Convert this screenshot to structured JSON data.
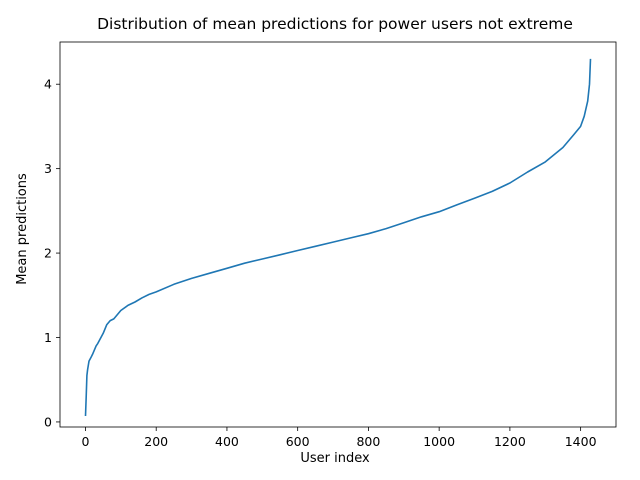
{
  "chart_data": {
    "type": "line",
    "title": "Distribution of mean predictions for power users not extreme",
    "xlabel": "User index",
    "ylabel": "Mean predictions",
    "xlim": [
      -72,
      1500
    ],
    "ylim": [
      -0.06,
      4.5
    ],
    "xticks": [
      0,
      200,
      400,
      600,
      800,
      1000,
      1200,
      1400
    ],
    "yticks": [
      0,
      1,
      2,
      3,
      4
    ],
    "grid": false,
    "legend": "none",
    "color": "#1f77b4",
    "series": [
      {
        "x": [
          0,
          2,
          4,
          6,
          10,
          15,
          20,
          25,
          30,
          35,
          40,
          50,
          60,
          70,
          80,
          100,
          120,
          140,
          160,
          180,
          200,
          250,
          300,
          350,
          400,
          450,
          500,
          550,
          600,
          650,
          700,
          750,
          800,
          850,
          900,
          950,
          1000,
          1050,
          1100,
          1150,
          1200,
          1250,
          1300,
          1350,
          1380,
          1400,
          1410,
          1420,
          1425,
          1428
        ],
        "values": [
          0.07,
          0.3,
          0.55,
          0.62,
          0.72,
          0.76,
          0.8,
          0.85,
          0.9,
          0.93,
          0.97,
          1.05,
          1.15,
          1.2,
          1.22,
          1.32,
          1.38,
          1.42,
          1.47,
          1.51,
          1.54,
          1.63,
          1.7,
          1.76,
          1.82,
          1.88,
          1.93,
          1.98,
          2.03,
          2.08,
          2.13,
          2.18,
          2.23,
          2.29,
          2.36,
          2.43,
          2.49,
          2.57,
          2.65,
          2.73,
          2.83,
          2.96,
          3.08,
          3.25,
          3.4,
          3.5,
          3.62,
          3.8,
          4.0,
          4.3
        ]
      }
    ]
  }
}
